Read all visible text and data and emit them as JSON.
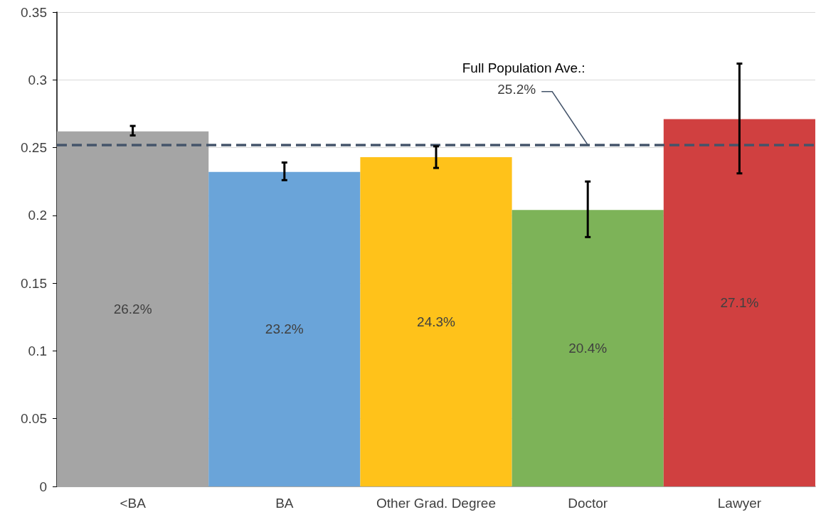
{
  "chart_data": {
    "type": "bar",
    "categories": [
      "<BA",
      "BA",
      "Other Grad. Degree",
      "Doctor",
      "Lawyer"
    ],
    "values": [
      0.262,
      0.232,
      0.243,
      0.204,
      0.271
    ],
    "colors": [
      "#a5a5a5",
      "#6aa4d9",
      "#ffc21a",
      "#7db358",
      "#d04040"
    ],
    "value_labels": [
      "26.2%",
      "23.2%",
      "24.3%",
      "20.4%",
      "27.1%"
    ],
    "errors": [
      [
        0.259,
        0.266
      ],
      [
        0.226,
        0.239
      ],
      [
        0.235,
        0.251
      ],
      [
        0.184,
        0.225
      ],
      [
        0.231,
        0.312
      ]
    ],
    "ylim": [
      0,
      0.35
    ],
    "yticks": [
      0,
      0.05,
      0.1,
      0.15,
      0.2,
      0.25,
      0.3,
      0.35
    ],
    "grid": "y",
    "ref_lines": [
      {
        "axis": "y",
        "value": 0.252,
        "label": "Full Population Ave.:",
        "color": "#44546a",
        "line_style": "dashed"
      }
    ],
    "annotations": [
      {
        "text": "25.2%",
        "x": "Doctor",
        "y": 0.252
      }
    ]
  }
}
